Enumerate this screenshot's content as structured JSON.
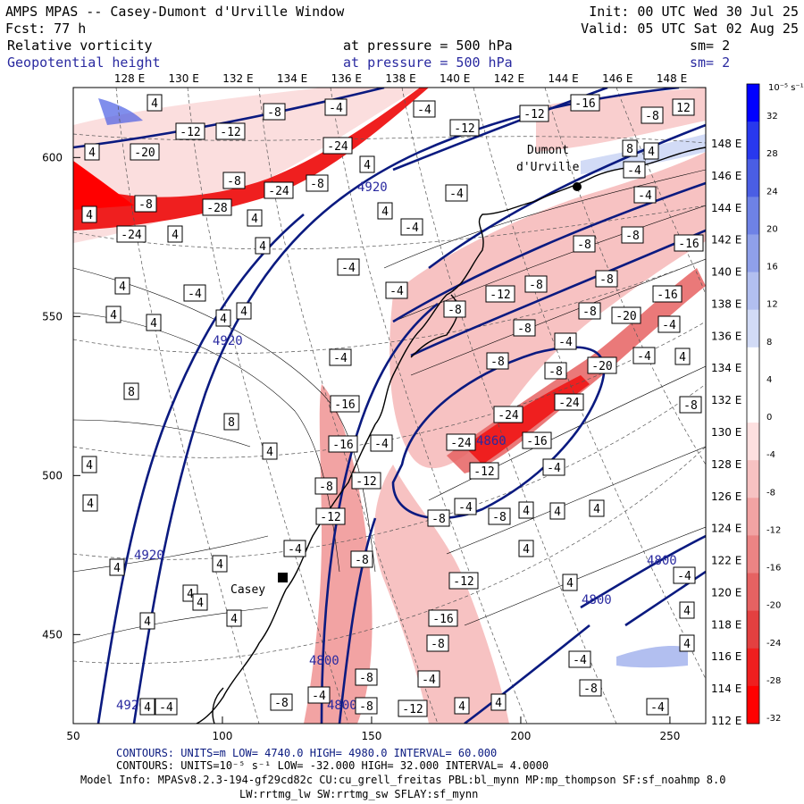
{
  "header": {
    "title": "AMPS MPAS -- Casey-Dumont d'Urville Window",
    "fcst": "Fcst:   77 h",
    "init": "Init: 00 UTC Wed 30 Jul 25",
    "valid": "Valid: 05 UTC Sat 02 Aug 25",
    "field1_name": "Relative vorticity",
    "field1_level": "at pressure =  500 hPa",
    "field1_sm": "sm= 2",
    "field2_name": "Geopotential height",
    "field2_level": "at pressure =  500 hPa",
    "field2_sm": "sm= 2"
  },
  "map": {
    "stations": [
      {
        "name": "Dumont",
        "name2": "d'Urville"
      },
      {
        "name": "Casey"
      }
    ]
  },
  "chart_data": {
    "type": "heatmap",
    "xlim": [
      50,
      262
    ],
    "ylim": [
      422,
      622
    ],
    "x_ticks": [
      50,
      100,
      150,
      200,
      250
    ],
    "y_ticks": [
      450,
      500,
      550,
      600
    ],
    "lon_labels_top": [
      "128 E",
      "130 E",
      "132 E",
      "134 E",
      "136 E",
      "138 E",
      "140 E",
      "142 E",
      "144 E",
      "146 E",
      "148 E"
    ],
    "lon_labels_right": [
      "148 E",
      "146 E",
      "144 E",
      "142 E",
      "140 E",
      "138 E",
      "136 E",
      "134 E",
      "132 E",
      "130 E",
      "128 E",
      "126 E",
      "124 E",
      "122 E",
      "120 E",
      "118 E",
      "116 E",
      "114 E",
      "112 E"
    ],
    "colorbar": {
      "unit": "10⁻⁵ s⁻¹",
      "levels": [
        32,
        28,
        24,
        20,
        16,
        12,
        8,
        4,
        0,
        -4,
        -8,
        -12,
        -16,
        -20,
        -24,
        -28,
        -32
      ],
      "colors": [
        "#0000ff",
        "#2838ee",
        "#4a5ee4",
        "#6e82e6",
        "#8fa0ea",
        "#b2bff0",
        "#d2dbf6",
        "#ffffff",
        "#ffffff",
        "#fde0e0",
        "#f7c2c2",
        "#f2a3a3",
        "#ec8484",
        "#e66262",
        "#e34040",
        "#ef1f1f",
        "#ff0000"
      ]
    },
    "geopotential_contours": [
      {
        "value": 4920,
        "label": "4920"
      },
      {
        "value": 4860,
        "label": "4860"
      },
      {
        "value": 4800,
        "label": "4800"
      }
    ],
    "vorticity_labels": [
      "-4",
      "-8",
      "-12",
      "-16",
      "-20",
      "-24",
      "-28",
      "4",
      "8",
      "12"
    ],
    "footer": {
      "line1": "CONTOURS:  UNITS=m  LOW=  4740.0          HIGH=  4980.0          INTERVAL=  60.000",
      "line2": "CONTOURS:  UNITS=10⁻⁵ s⁻¹  LOW=  -32.000          HIGH=  32.000          INTERVAL=   4.0000",
      "line3": "Model Info: MPASv8.2.3-194-gf29cd82c CU:cu_grell_freitas PBL:bl_mynn MP:mp_thompson SF:sf_noahmp 8.0",
      "line4": "LW:rrtmg_lw SW:rrtmg_sw SFLAY:sf_mynn"
    }
  }
}
